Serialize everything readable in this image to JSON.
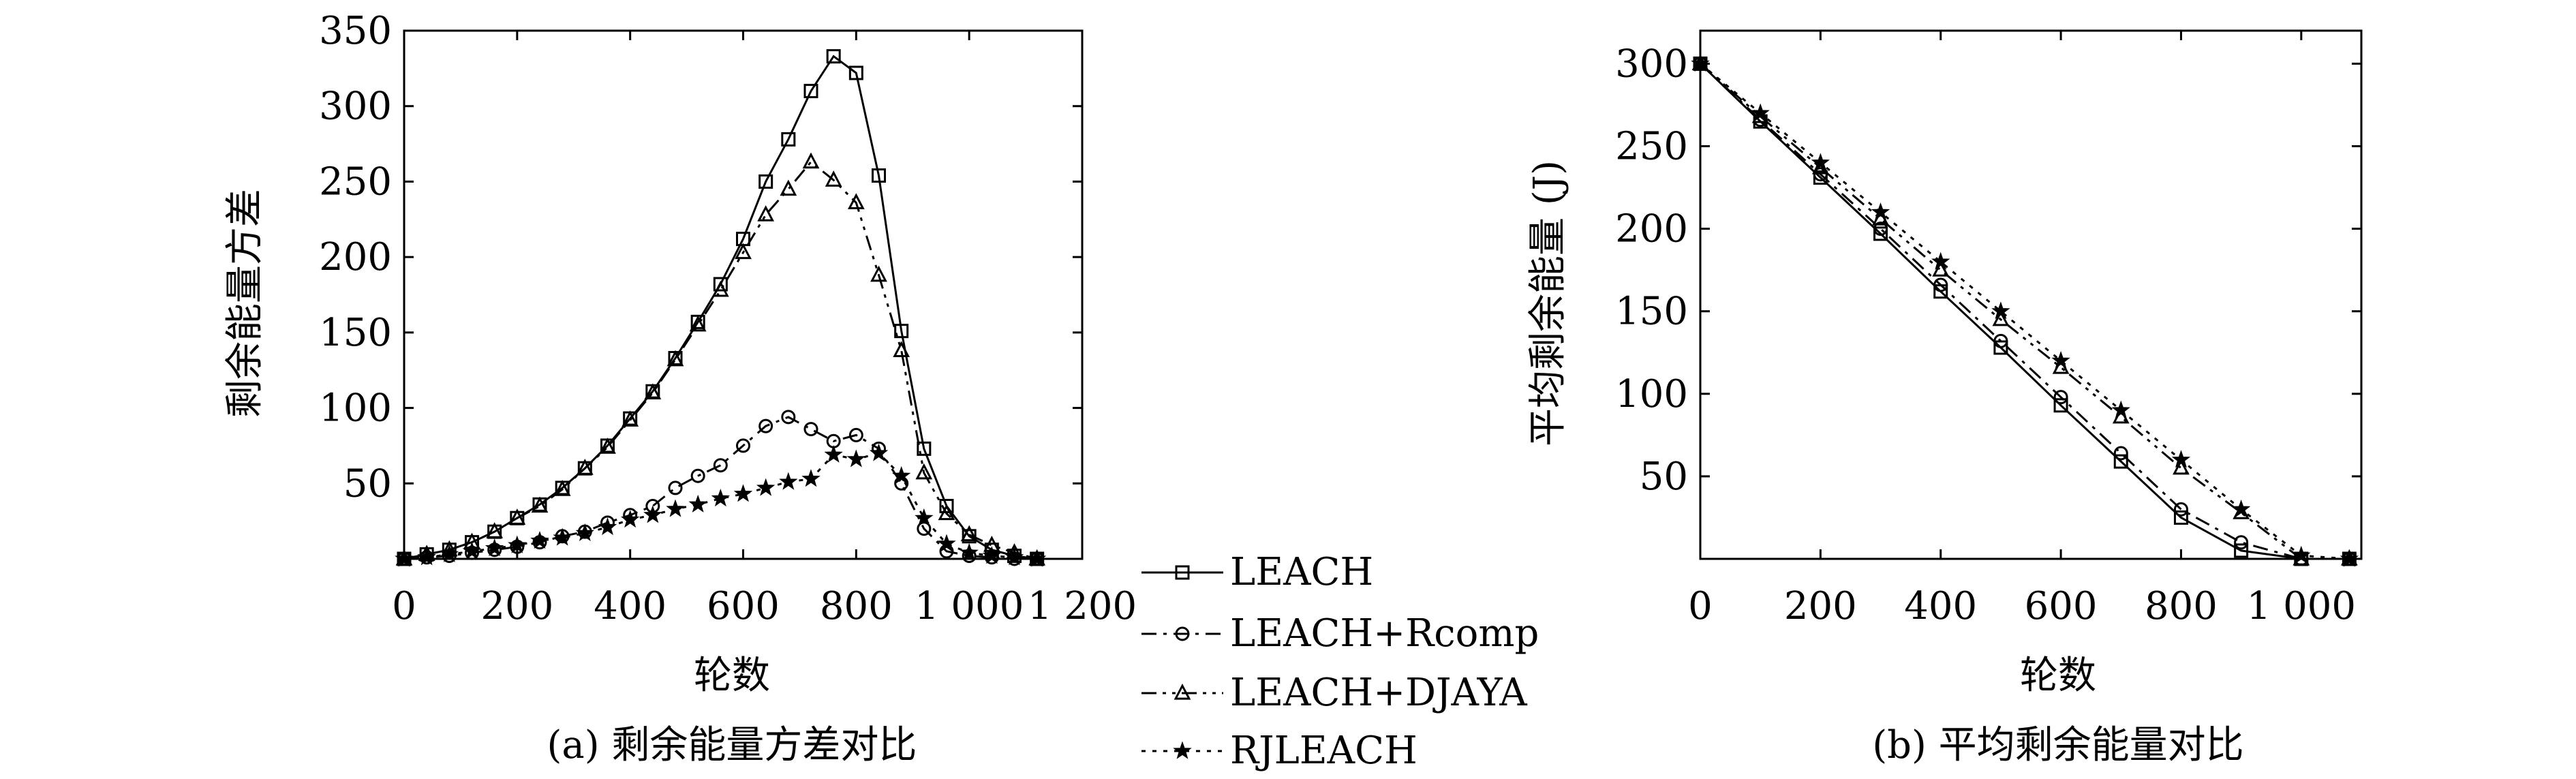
{
  "chart_data": [
    {
      "type": "line",
      "caption": "(a) 剩余能量方差对比",
      "xlabel": "轮数",
      "ylabel": "剩余能量方差",
      "xlim": [
        0,
        1200
      ],
      "ylim": [
        0,
        350
      ],
      "x_ticks": [
        0,
        200,
        400,
        600,
        800,
        1000,
        1200
      ],
      "x_tick_labels": [
        "0",
        "200",
        "400",
        "600",
        "800",
        "1 000",
        "1 200"
      ],
      "y_ticks": [
        50,
        100,
        150,
        200,
        250,
        300,
        350
      ],
      "y_tick_labels": [
        "50",
        "100",
        "150",
        "200",
        "250",
        "300",
        "350"
      ],
      "grid": false,
      "series": [
        {
          "name": "LEACH",
          "marker": "square",
          "dash": "solid",
          "x": [
            0,
            40,
            80,
            120,
            160,
            200,
            240,
            280,
            320,
            360,
            400,
            440,
            480,
            520,
            560,
            600,
            640,
            680,
            720,
            760,
            800,
            840,
            880,
            920,
            960,
            1000,
            1040,
            1080,
            1120
          ],
          "y": [
            0,
            3,
            6,
            11,
            18,
            27,
            36,
            47,
            60,
            75,
            93,
            111,
            133,
            157,
            182,
            212,
            250,
            278,
            310,
            333,
            322,
            254,
            151,
            73,
            35,
            15,
            6,
            2,
            0
          ]
        },
        {
          "name": "LEACH+Rcomp",
          "marker": "circle",
          "dash": "dashdot",
          "x": [
            0,
            40,
            80,
            120,
            160,
            200,
            240,
            280,
            320,
            360,
            400,
            440,
            480,
            520,
            560,
            600,
            640,
            680,
            720,
            760,
            800,
            840,
            880,
            920,
            960,
            1000,
            1040,
            1080,
            1120
          ],
          "y": [
            0,
            1,
            2,
            4,
            6,
            8,
            11,
            15,
            18,
            24,
            29,
            35,
            47,
            55,
            62,
            75,
            88,
            94,
            86,
            78,
            82,
            73,
            50,
            20,
            5,
            2,
            1,
            0,
            0
          ]
        },
        {
          "name": "LEACH+DJAYA",
          "marker": "triangle",
          "dash": "dashdotdot",
          "x": [
            0,
            40,
            80,
            120,
            160,
            200,
            240,
            280,
            320,
            360,
            400,
            440,
            480,
            520,
            560,
            600,
            640,
            680,
            720,
            760,
            800,
            840,
            880,
            920,
            960,
            1000,
            1040,
            1080,
            1120
          ],
          "y": [
            0,
            3,
            6,
            11,
            18,
            27,
            35,
            46,
            60,
            74,
            92,
            110,
            132,
            155,
            178,
            203,
            228,
            245,
            263,
            251,
            236,
            188,
            138,
            57,
            30,
            16,
            9,
            4,
            0
          ]
        },
        {
          "name": "RJLEACH",
          "marker": "star",
          "dash": "dotted",
          "x": [
            0,
            40,
            80,
            120,
            160,
            200,
            240,
            280,
            320,
            360,
            400,
            440,
            480,
            520,
            560,
            600,
            640,
            680,
            720,
            760,
            800,
            840,
            880,
            920,
            960,
            1000,
            1040,
            1080,
            1120
          ],
          "y": [
            0,
            1,
            3,
            5,
            7,
            9,
            12,
            14,
            17,
            21,
            26,
            29,
            33,
            36,
            40,
            43,
            47,
            51,
            53,
            69,
            66,
            70,
            55,
            27,
            10,
            4,
            2,
            1,
            0
          ]
        }
      ]
    },
    {
      "type": "line",
      "caption": "(b) 平均剩余能量对比",
      "xlabel": "轮数",
      "ylabel": "平均剩余能量 (J)",
      "xlim": [
        0,
        1100
      ],
      "ylim": [
        0,
        320
      ],
      "x_ticks": [
        0,
        200,
        400,
        600,
        800,
        1000
      ],
      "x_tick_labels": [
        "0",
        "200",
        "400",
        "600",
        "800",
        "1 000"
      ],
      "y_ticks": [
        50,
        100,
        150,
        200,
        250,
        300
      ],
      "y_tick_labels": [
        "50",
        "100",
        "150",
        "200",
        "250",
        "300"
      ],
      "grid": false,
      "series": [
        {
          "name": "LEACH",
          "marker": "square",
          "dash": "solid",
          "x": [
            0,
            100,
            200,
            300,
            400,
            500,
            600,
            700,
            800,
            900,
            1000,
            1080
          ],
          "y": [
            300,
            265,
            231,
            197,
            162,
            128,
            93,
            59,
            25,
            5,
            0,
            0
          ]
        },
        {
          "name": "LEACH+Rcomp",
          "marker": "circle",
          "dash": "dashdot",
          "x": [
            0,
            100,
            200,
            300,
            400,
            500,
            600,
            700,
            800,
            900,
            1000,
            1080
          ],
          "y": [
            300,
            266,
            233,
            200,
            166,
            132,
            98,
            64,
            30,
            10,
            0,
            0
          ]
        },
        {
          "name": "LEACH+DJAYA",
          "marker": "triangle",
          "dash": "dashdotdot",
          "x": [
            0,
            100,
            200,
            300,
            400,
            500,
            600,
            700,
            800,
            900,
            1000,
            1080
          ],
          "y": [
            300,
            268,
            237,
            206,
            175,
            145,
            116,
            86,
            55,
            28,
            0,
            0
          ]
        },
        {
          "name": "RJLEACH",
          "marker": "star",
          "dash": "dotted",
          "x": [
            0,
            100,
            200,
            300,
            400,
            500,
            600,
            700,
            800,
            900,
            1000,
            1080
          ],
          "y": [
            300,
            270,
            240,
            210,
            180,
            150,
            120,
            90,
            60,
            30,
            2,
            0
          ]
        }
      ]
    }
  ],
  "legend": {
    "placement": "bottom-center",
    "items": [
      "LEACH",
      "LEACH+Rcomp",
      "LEACH+DJAYA",
      "RJLEACH"
    ]
  }
}
